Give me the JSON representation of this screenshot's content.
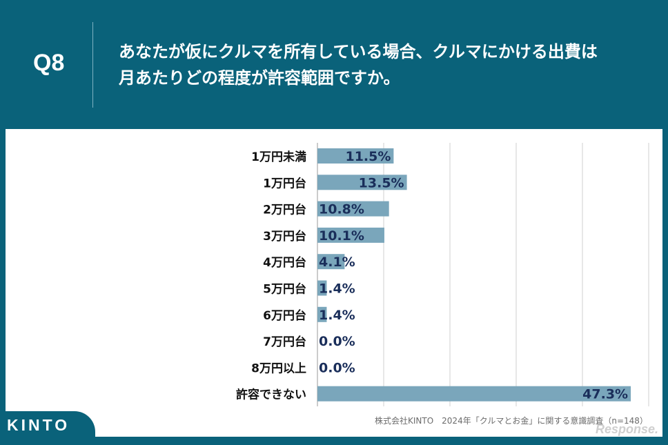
{
  "header": {
    "question_number": "Q8",
    "question_line1": "あなたが仮にクルマを所有している場合、クルマにかける出費は",
    "question_line2": "月あたりどの程度が許容範囲ですか。"
  },
  "footer": {
    "source": "株式会社KINTO　2024年「クルマとお金」に関する意識調査（n=148）",
    "brand": "KINTO",
    "watermark": "Response."
  },
  "colors": {
    "background": "#0a627a",
    "bar": "#7aa6bb",
    "label_text": "#1a2e5a"
  },
  "chart_data": {
    "type": "bar",
    "orientation": "horizontal",
    "categories": [
      "1万円未満",
      "1万円台",
      "2万円台",
      "3万円台",
      "4万円台",
      "5万円台",
      "6万円台",
      "7万円台",
      "8万円以上",
      "許容できない"
    ],
    "values": [
      11.5,
      13.5,
      10.8,
      10.1,
      4.1,
      1.4,
      1.4,
      0.0,
      0.0,
      47.3
    ],
    "value_labels": [
      "11.5%",
      "13.5%",
      "10.8%",
      "10.1%",
      "4.1%",
      "1.4%",
      "1.4%",
      "0.0%",
      "0.0%",
      "47.3%"
    ],
    "xlim": [
      0,
      50
    ],
    "grid": true,
    "title": "",
    "xlabel": "",
    "ylabel": ""
  }
}
